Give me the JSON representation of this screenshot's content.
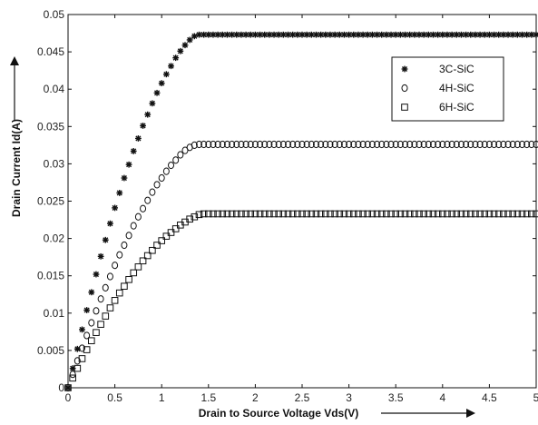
{
  "chart_data": {
    "type": "scatter",
    "title": "",
    "xlabel": "Drain to Source Voltage Vds(V)",
    "ylabel": "Drain Current Id(A)",
    "xlim": [
      0,
      5
    ],
    "ylim": [
      0,
      0.05
    ],
    "xticks": [
      "0",
      "0.5",
      "1",
      "1.5",
      "2",
      "2.5",
      "3",
      "3.5",
      "4",
      "4.5",
      "5"
    ],
    "yticks": [
      "0",
      "0.005",
      "0.01",
      "0.015",
      "0.02",
      "0.025",
      "0.03",
      "0.035",
      "0.04",
      "0.045",
      "0.05"
    ],
    "legend_position": "top-right",
    "grid": false,
    "series": [
      {
        "name": "3C-SiC",
        "marker": "star",
        "x": [
          0,
          0.05,
          0.1,
          0.15,
          0.2,
          0.25,
          0.3,
          0.35,
          0.4,
          0.45,
          0.5,
          0.55,
          0.6,
          0.65,
          0.7,
          0.75,
          0.8,
          0.85,
          0.9,
          0.95,
          1.0,
          1.05,
          1.1,
          1.15,
          1.2,
          1.25,
          1.3,
          1.35,
          1.4,
          1.45,
          1.5,
          1.55,
          1.6,
          1.65,
          1.7,
          1.75,
          1.8,
          1.85,
          1.9,
          1.95,
          2.0,
          2.05,
          2.1,
          2.15,
          2.2,
          2.25,
          2.3,
          2.35,
          2.4,
          2.45,
          2.5,
          2.55,
          2.6,
          2.65,
          2.7,
          2.75,
          2.8,
          2.85,
          2.9,
          2.95,
          3.0,
          3.05,
          3.1,
          3.15,
          3.2,
          3.25,
          3.3,
          3.35,
          3.4,
          3.45,
          3.5,
          3.55,
          3.6,
          3.65,
          3.7,
          3.75,
          3.8,
          3.85,
          3.9,
          3.95,
          4.0,
          4.05,
          4.1,
          4.15,
          4.2,
          4.25,
          4.3,
          4.35,
          4.4,
          4.45,
          4.5,
          4.55,
          4.6,
          4.65,
          4.7,
          4.75,
          4.8,
          4.85,
          4.9,
          4.95,
          5.0
        ],
        "y": [
          0,
          0.0026,
          0.0052,
          0.0078,
          0.0104,
          0.0128,
          0.0152,
          0.0176,
          0.0198,
          0.022,
          0.0241,
          0.0261,
          0.0281,
          0.0299,
          0.0317,
          0.0334,
          0.0351,
          0.0366,
          0.0381,
          0.0395,
          0.0408,
          0.042,
          0.0431,
          0.0442,
          0.0451,
          0.0459,
          0.0466,
          0.0471,
          0.0473,
          0.0473,
          0.0473,
          0.0473,
          0.0473,
          0.0473,
          0.0473,
          0.0473,
          0.0473,
          0.0473,
          0.0473,
          0.0473,
          0.0473,
          0.0473,
          0.0473,
          0.0473,
          0.0473,
          0.0473,
          0.0473,
          0.0473,
          0.0473,
          0.0473,
          0.0473,
          0.0473,
          0.0473,
          0.0473,
          0.0473,
          0.0473,
          0.0473,
          0.0473,
          0.0473,
          0.0473,
          0.0473,
          0.0473,
          0.0473,
          0.0473,
          0.0473,
          0.0473,
          0.0473,
          0.0473,
          0.0473,
          0.0473,
          0.0473,
          0.0473,
          0.0473,
          0.0473,
          0.0473,
          0.0473,
          0.0473,
          0.0473,
          0.0473,
          0.0473,
          0.0473,
          0.0473,
          0.0473,
          0.0473,
          0.0473,
          0.0473,
          0.0473,
          0.0473,
          0.0473,
          0.0473,
          0.0473,
          0.0473,
          0.0473,
          0.0473,
          0.0473,
          0.0473,
          0.0473,
          0.0473,
          0.0473,
          0.0473,
          0.0473
        ]
      },
      {
        "name": "4H-SiC",
        "marker": "circle",
        "x": [
          0,
          0.05,
          0.1,
          0.15,
          0.2,
          0.25,
          0.3,
          0.35,
          0.4,
          0.45,
          0.5,
          0.55,
          0.6,
          0.65,
          0.7,
          0.75,
          0.8,
          0.85,
          0.9,
          0.95,
          1.0,
          1.05,
          1.1,
          1.15,
          1.2,
          1.25,
          1.3,
          1.35,
          1.4,
          1.45,
          1.5,
          1.55,
          1.6,
          1.65,
          1.7,
          1.75,
          1.8,
          1.85,
          1.9,
          1.95,
          2.0,
          2.05,
          2.1,
          2.15,
          2.2,
          2.25,
          2.3,
          2.35,
          2.4,
          2.45,
          2.5,
          2.55,
          2.6,
          2.65,
          2.7,
          2.75,
          2.8,
          2.85,
          2.9,
          2.95,
          3.0,
          3.05,
          3.1,
          3.15,
          3.2,
          3.25,
          3.3,
          3.35,
          3.4,
          3.45,
          3.5,
          3.55,
          3.6,
          3.65,
          3.7,
          3.75,
          3.8,
          3.85,
          3.9,
          3.95,
          4.0,
          4.05,
          4.1,
          4.15,
          4.2,
          4.25,
          4.3,
          4.35,
          4.4,
          4.45,
          4.5,
          4.55,
          4.6,
          4.65,
          4.7,
          4.75,
          4.8,
          4.85,
          4.9,
          4.95,
          5.0
        ],
        "y": [
          0,
          0.0018,
          0.0036,
          0.0053,
          0.007,
          0.0087,
          0.0103,
          0.0119,
          0.0134,
          0.0149,
          0.0164,
          0.0178,
          0.0191,
          0.0204,
          0.0217,
          0.0229,
          0.024,
          0.0251,
          0.0262,
          0.0272,
          0.0281,
          0.029,
          0.0298,
          0.0305,
          0.0312,
          0.0318,
          0.0322,
          0.0325,
          0.0326,
          0.0326,
          0.0326,
          0.0326,
          0.0326,
          0.0326,
          0.0326,
          0.0326,
          0.0326,
          0.0326,
          0.0326,
          0.0326,
          0.0326,
          0.0326,
          0.0326,
          0.0326,
          0.0326,
          0.0326,
          0.0326,
          0.0326,
          0.0326,
          0.0326,
          0.0326,
          0.0326,
          0.0326,
          0.0326,
          0.0326,
          0.0326,
          0.0326,
          0.0326,
          0.0326,
          0.0326,
          0.0326,
          0.0326,
          0.0326,
          0.0326,
          0.0326,
          0.0326,
          0.0326,
          0.0326,
          0.0326,
          0.0326,
          0.0326,
          0.0326,
          0.0326,
          0.0326,
          0.0326,
          0.0326,
          0.0326,
          0.0326,
          0.0326,
          0.0326,
          0.0326,
          0.0326,
          0.0326,
          0.0326,
          0.0326,
          0.0326,
          0.0326,
          0.0326,
          0.0326,
          0.0326,
          0.0326,
          0.0326,
          0.0326,
          0.0326,
          0.0326,
          0.0326,
          0.0326,
          0.0326,
          0.0326,
          0.0326,
          0.0326
        ]
      },
      {
        "name": "6H-SiC",
        "marker": "square",
        "x": [
          0,
          0.05,
          0.1,
          0.15,
          0.2,
          0.25,
          0.3,
          0.35,
          0.4,
          0.45,
          0.5,
          0.55,
          0.6,
          0.65,
          0.7,
          0.75,
          0.8,
          0.85,
          0.9,
          0.95,
          1.0,
          1.05,
          1.1,
          1.15,
          1.2,
          1.25,
          1.3,
          1.35,
          1.4,
          1.45,
          1.5,
          1.55,
          1.6,
          1.65,
          1.7,
          1.75,
          1.8,
          1.85,
          1.9,
          1.95,
          2.0,
          2.05,
          2.1,
          2.15,
          2.2,
          2.25,
          2.3,
          2.35,
          2.4,
          2.45,
          2.5,
          2.55,
          2.6,
          2.65,
          2.7,
          2.75,
          2.8,
          2.85,
          2.9,
          2.95,
          3.0,
          3.05,
          3.1,
          3.15,
          3.2,
          3.25,
          3.3,
          3.35,
          3.4,
          3.45,
          3.5,
          3.55,
          3.6,
          3.65,
          3.7,
          3.75,
          3.8,
          3.85,
          3.9,
          3.95,
          4.0,
          4.05,
          4.1,
          4.15,
          4.2,
          4.25,
          4.3,
          4.35,
          4.4,
          4.45,
          4.5,
          4.55,
          4.6,
          4.65,
          4.7,
          4.75,
          4.8,
          4.85,
          4.9,
          4.95,
          5.0
        ],
        "y": [
          0,
          0.0013,
          0.0026,
          0.0039,
          0.0051,
          0.0063,
          0.0074,
          0.0085,
          0.0096,
          0.0107,
          0.0117,
          0.0127,
          0.0136,
          0.0145,
          0.0154,
          0.0162,
          0.017,
          0.0177,
          0.0184,
          0.0191,
          0.0197,
          0.0203,
          0.0208,
          0.0213,
          0.0218,
          0.0222,
          0.0226,
          0.0229,
          0.0232,
          0.0233,
          0.0233,
          0.0233,
          0.0233,
          0.0233,
          0.0233,
          0.0233,
          0.0233,
          0.0233,
          0.0233,
          0.0233,
          0.0233,
          0.0233,
          0.0233,
          0.0233,
          0.0233,
          0.0233,
          0.0233,
          0.0233,
          0.0233,
          0.0233,
          0.0233,
          0.0233,
          0.0233,
          0.0233,
          0.0233,
          0.0233,
          0.0233,
          0.0233,
          0.0233,
          0.0233,
          0.0233,
          0.0233,
          0.0233,
          0.0233,
          0.0233,
          0.0233,
          0.0233,
          0.0233,
          0.0233,
          0.0233,
          0.0233,
          0.0233,
          0.0233,
          0.0233,
          0.0233,
          0.0233,
          0.0233,
          0.0233,
          0.0233,
          0.0233,
          0.0233,
          0.0233,
          0.0233,
          0.0233,
          0.0233,
          0.0233,
          0.0233,
          0.0233,
          0.0233,
          0.0233,
          0.0233,
          0.0233,
          0.0233,
          0.0233,
          0.0233,
          0.0233,
          0.0233,
          0.0233,
          0.0233,
          0.0233,
          0.0233
        ]
      }
    ]
  }
}
